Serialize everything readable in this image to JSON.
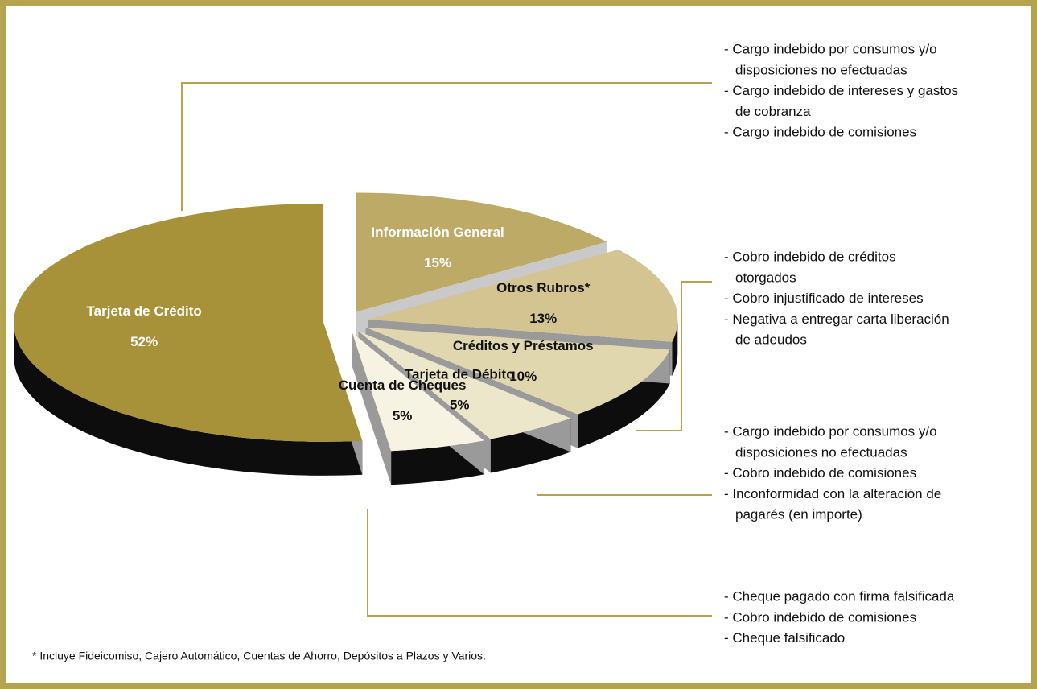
{
  "chart_data": {
    "type": "pie",
    "categories": [
      "Información General",
      "Otros Rubros*",
      "Créditos y Préstamos",
      "Tarjeta de Débito",
      "Cuenta de Cheques",
      "Tarjeta de Crédito"
    ],
    "values": [
      15,
      13,
      10,
      5,
      5,
      52
    ],
    "value_labels": [
      "15%",
      "13%",
      "10%",
      "5%",
      "5%",
      "52%"
    ],
    "colors": [
      "#bcaa66",
      "#d3c491",
      "#e1d7af",
      "#ece6cb",
      "#f7f3e3",
      "#a89239"
    ],
    "annotations": [
      [
        "- Cargo indebido por consumos y/o",
        "disposiciones no efectuadas",
        "- Cargo indebido de intereses y gastos",
        "de cobranza",
        "- Cargo indebido de comisiones"
      ],
      [
        "- Cobro indebido de créditos",
        "otorgados",
        "- Cobro injustificado de intereses",
        "- Negativa a entregar carta liberación",
        "de adeudos"
      ],
      [
        "- Cargo indebido por consumos y/o",
        "disposiciones no efectuadas",
        "- Cobro indebido de comisiones",
        "- Inconformidad con la alteración de",
        "pagarés (en importe)"
      ],
      [
        "- Cheque pagado con firma falsificada",
        "- Cobro indebido de comisiones",
        "- Cheque falsificado"
      ]
    ],
    "footnote": "* Incluye Fideicomiso, Cajero Automático, Cuentas de Ahorro, Depósitos a Plazos y Varios."
  }
}
